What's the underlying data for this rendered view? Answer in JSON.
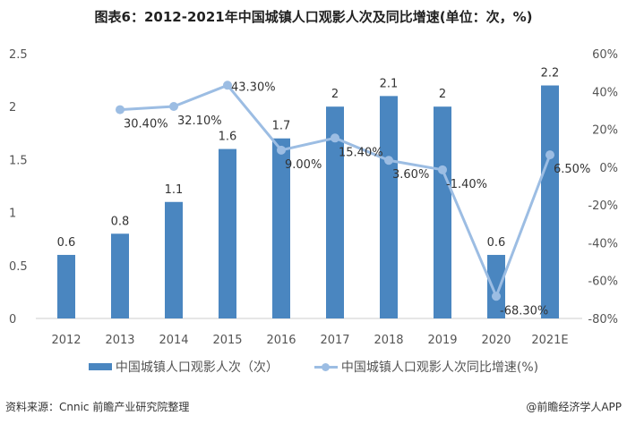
{
  "chart_data": {
    "type": "bar+line",
    "title": "图表6：2012-2021年中国城镇人口观影人次及同比增速(单位：次，%)",
    "categories": [
      "2012",
      "2013",
      "2014",
      "2015",
      "2016",
      "2017",
      "2018",
      "2019",
      "2020",
      "2021E"
    ],
    "series": [
      {
        "name": "中国城镇人口观影人次（次）",
        "type": "bar",
        "axis": "left",
        "color": "#4a86c0",
        "values": [
          0.6,
          0.8,
          1.1,
          1.6,
          1.7,
          2,
          2.1,
          2,
          0.6,
          2.2
        ],
        "labels": [
          "0.6",
          "0.8",
          "1.1",
          "1.6",
          "1.7",
          "2",
          "2.1",
          "2",
          "0.6",
          "2.2"
        ]
      },
      {
        "name": "中国城镇人口观影人次同比增速(%)",
        "type": "line",
        "axis": "right",
        "color": "#9cbde3",
        "values": [
          null,
          30.4,
          32.1,
          43.3,
          9.0,
          15.4,
          3.6,
          -1.4,
          -68.3,
          6.5
        ],
        "labels": [
          null,
          "30.40%",
          "32.10%",
          "43.30%",
          "9.00%",
          "15.40%",
          "3.60%",
          "-1.40%",
          "-68.30%",
          "6.50%"
        ]
      }
    ],
    "left_axis": {
      "ylim": [
        0,
        2.5
      ],
      "ticks": [
        "0",
        "0.5",
        "1",
        "1.5",
        "2",
        "2.5"
      ]
    },
    "right_axis": {
      "ylim": [
        -80,
        60
      ],
      "ticks": [
        "-80%",
        "-60%",
        "-40%",
        "-20%",
        "0%",
        "20%",
        "40%",
        "60%"
      ]
    },
    "legend": "bottom",
    "grid": false
  },
  "footer": {
    "source": "资料来源：Cnnic 前瞻产业研究院整理",
    "credit": "@前瞻经济学人APP"
  }
}
